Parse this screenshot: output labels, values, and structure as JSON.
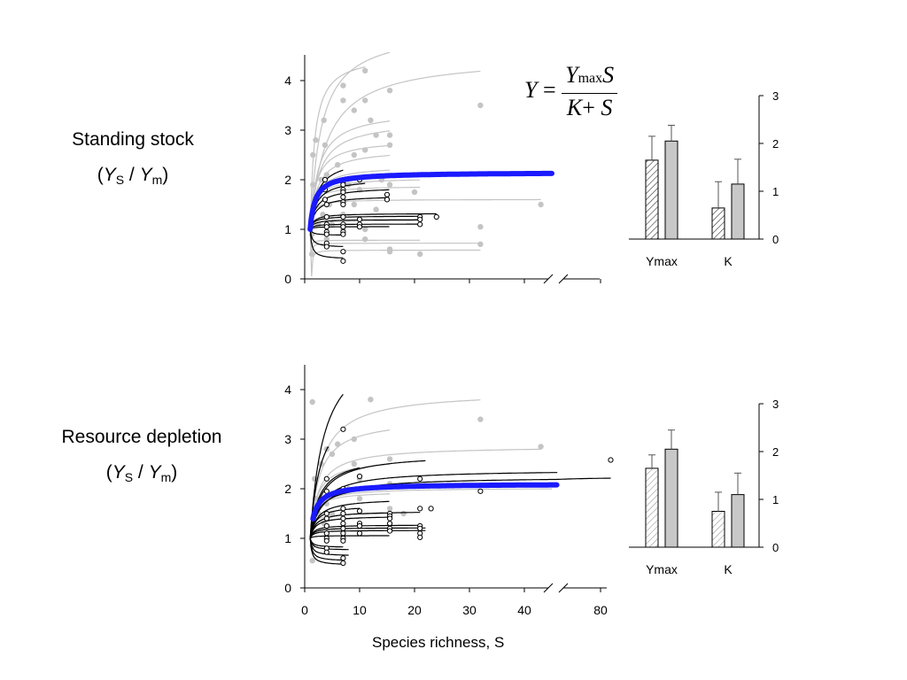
{
  "labels": {
    "top_row": "Standing stock",
    "bottom_row": "Resource depletion",
    "ratio_y": "Y",
    "ratio_sub_s": "S",
    "ratio_slash": " / ",
    "ratio_sub_m": "m",
    "x_axis": "Species richness, S",
    "equation_y": "Y",
    "equation_eq": "=",
    "equation_ymax": "Y",
    "equation_max": "max",
    "equation_s": "S",
    "equation_k": "K",
    "equation_plus": "+"
  },
  "colors": {
    "mean_curve": "#1a1aff",
    "gray_curve": "#c4c4c4",
    "gray_point": "#c4c4c4",
    "black_curve": "#000000",
    "bar_gray": "#c8c8c8"
  },
  "chart_data": [
    {
      "type": "scatter",
      "panel": "standing-stock",
      "xlabel": "",
      "ylabel": "",
      "xlim": [
        0,
        80
      ],
      "ylim": [
        0,
        4.4
      ],
      "y_ticks": [
        0,
        1,
        2,
        3,
        4
      ],
      "x_ticks": [],
      "axis_break": true,
      "mean_curve": {
        "Ymax": 2.15,
        "K": 0.9,
        "x_range": [
          1,
          45
        ]
      },
      "gray_curves": [
        {
          "a": 4.6,
          "b": 2.0,
          "xmax": 15.5
        },
        {
          "a": 4.3,
          "b": 0.8,
          "xmax": 11
        },
        {
          "a": 4.2,
          "b": 3.0,
          "xmax": 32
        },
        {
          "a": 3.2,
          "b": 1.5,
          "xmax": 15.5
        },
        {
          "a": 3.0,
          "b": 1.6,
          "xmax": 15.5
        },
        {
          "a": 2.7,
          "b": 1.1,
          "xmax": 15.5
        },
        {
          "a": 2.5,
          "b": 1.3,
          "xmax": 15.5
        },
        {
          "a": 2.2,
          "b": 1.1,
          "xmax": 15.5
        },
        {
          "a": 2.0,
          "b": 0.9,
          "xmax": 21
        },
        {
          "a": 1.85,
          "b": 0.6,
          "xmax": 21
        },
        {
          "a": 1.6,
          "b": 0.5,
          "xmax": 43
        },
        {
          "a": 1.2,
          "b": 0.15,
          "xmax": 21
        },
        {
          "a": 0.78,
          "b": -0.1,
          "xmax": 21
        },
        {
          "a": 0.72,
          "b": -0.12,
          "xmax": 32
        },
        {
          "a": 0.58,
          "b": -0.14,
          "xmax": 32
        }
      ],
      "black_curves": [
        {
          "a": 2.05,
          "b": 0.8,
          "xmax": 7
        },
        {
          "a": 1.9,
          "b": 0.7,
          "xmax": 7
        },
        {
          "a": 1.85,
          "b": 0.65,
          "xmax": 11
        },
        {
          "a": 1.75,
          "b": 0.6,
          "xmax": 15.5
        },
        {
          "a": 1.6,
          "b": 0.5,
          "xmax": 15.5
        },
        {
          "a": 1.3,
          "b": 0.2,
          "xmax": 24
        },
        {
          "a": 1.25,
          "b": 0.15,
          "xmax": 21
        },
        {
          "a": 1.18,
          "b": 0.1,
          "xmax": 21
        },
        {
          "a": 1.1,
          "b": 0.05,
          "xmax": 21
        },
        {
          "a": 1.05,
          "b": 0.03,
          "xmax": 15.5
        },
        {
          "a": 0.9,
          "b": -0.05,
          "xmax": 7
        },
        {
          "a": 0.7,
          "b": -0.12,
          "xmax": 7
        },
        {
          "a": 0.5,
          "b": -0.2,
          "xmax": 7
        }
      ],
      "gray_points": [
        [
          1.3,
          0.5
        ],
        [
          1.3,
          0.9
        ],
        [
          1.5,
          1.9
        ],
        [
          1.5,
          2.5
        ],
        [
          2,
          1.5
        ],
        [
          2,
          2.8
        ],
        [
          2.5,
          1.1
        ],
        [
          2.7,
          1.8
        ],
        [
          3,
          2.0
        ],
        [
          3.3,
          1.3
        ],
        [
          3.5,
          3.2
        ],
        [
          3.7,
          2.7
        ],
        [
          4,
          2.1
        ],
        [
          4,
          0.8
        ],
        [
          4.5,
          1.5
        ],
        [
          5,
          1.1
        ],
        [
          6,
          2.3
        ],
        [
          7,
          3.9
        ],
        [
          7,
          3.6
        ],
        [
          7,
          2.0
        ],
        [
          7,
          1.3
        ],
        [
          7,
          1.0
        ],
        [
          8,
          1.9
        ],
        [
          9,
          3.4
        ],
        [
          9,
          2.5
        ],
        [
          9,
          1.5
        ],
        [
          10,
          1.8
        ],
        [
          11,
          4.2
        ],
        [
          11,
          3.6
        ],
        [
          11,
          2.6
        ],
        [
          11,
          1.0
        ],
        [
          11,
          0.8
        ],
        [
          12,
          3.2
        ],
        [
          13,
          2.9
        ],
        [
          13,
          1.4
        ],
        [
          14,
          2.0
        ],
        [
          15.5,
          3.8
        ],
        [
          15.5,
          2.9
        ],
        [
          15.5,
          2.7
        ],
        [
          15.5,
          1.9
        ],
        [
          15.5,
          0.6
        ],
        [
          15.5,
          0.55
        ],
        [
          20,
          1.75
        ],
        [
          21,
          1.2
        ],
        [
          21,
          0.5
        ],
        [
          32,
          3.5
        ],
        [
          32,
          1.05
        ],
        [
          32,
          0.7
        ],
        [
          43,
          1.5
        ]
      ],
      "black_points": [
        [
          3.7,
          2.0
        ],
        [
          3.7,
          1.8
        ],
        [
          3.7,
          1.6
        ],
        [
          4,
          1.5
        ],
        [
          4,
          1.25
        ],
        [
          4,
          1.1
        ],
        [
          4,
          1.05
        ],
        [
          4,
          0.95
        ],
        [
          4,
          0.9
        ],
        [
          4,
          0.72
        ],
        [
          4,
          0.65
        ],
        [
          7,
          1.95
        ],
        [
          7,
          1.9
        ],
        [
          7,
          1.8
        ],
        [
          7,
          1.75
        ],
        [
          7,
          1.65
        ],
        [
          7,
          1.55
        ],
        [
          7,
          1.5
        ],
        [
          7,
          1.25
        ],
        [
          7,
          1.1
        ],
        [
          7,
          1.05
        ],
        [
          7,
          0.95
        ],
        [
          7,
          0.9
        ],
        [
          7,
          0.55
        ],
        [
          7,
          0.36
        ],
        [
          10,
          2.0
        ],
        [
          10,
          1.2
        ],
        [
          10,
          1.1
        ],
        [
          10,
          1.05
        ],
        [
          15,
          1.7
        ],
        [
          15,
          1.6
        ],
        [
          21,
          1.25
        ],
        [
          21,
          1.2
        ],
        [
          21,
          1.1
        ],
        [
          24,
          1.25
        ]
      ]
    },
    {
      "type": "bar",
      "panel": "standing-stock-params",
      "categories": [
        "Ymax",
        "K"
      ],
      "series": [
        {
          "pattern": "hatched",
          "values": [
            1.65,
            0.65
          ],
          "err": [
            0.5,
            0.55
          ]
        },
        {
          "pattern": "solid-gray",
          "values": [
            2.05,
            1.15
          ],
          "err": [
            0.33,
            0.52
          ]
        }
      ],
      "ylim": [
        0,
        3
      ],
      "y_ticks": [
        0,
        1,
        2,
        3
      ],
      "y_axis_side": "right"
    },
    {
      "type": "scatter",
      "panel": "resource-depletion",
      "xlabel": "Species richness, S",
      "ylabel": "",
      "xlim": [
        0,
        80
      ],
      "ylim": [
        0,
        4.4
      ],
      "y_ticks": [
        0,
        1,
        2,
        3,
        4
      ],
      "x_ticks": [
        "0",
        "10",
        "20",
        "30",
        "40",
        "80"
      ],
      "axis_break": true,
      "mean_curve": {
        "Ymax": 2.1,
        "K": 0.9,
        "x_range": [
          1.5,
          46
        ]
      },
      "gray_curves": [
        {
          "a": 3.8,
          "b": 2.0,
          "xmax": 32
        },
        {
          "a": 3.2,
          "b": 1.6,
          "xmax": 15.5
        },
        {
          "a": 2.8,
          "b": 1.5,
          "xmax": 43
        },
        {
          "a": 2.5,
          "b": 1.2,
          "xmax": 15.5
        },
        {
          "a": 2.0,
          "b": 1.0,
          "xmax": 45
        },
        {
          "a": 1.9,
          "b": 0.8,
          "xmax": 15.5
        },
        {
          "a": 1.5,
          "b": 0.5,
          "xmax": 15.5
        },
        {
          "a": 1.4,
          "b": 0.4,
          "xmax": 10
        },
        {
          "a": 1.2,
          "b": 0.3,
          "xmax": 8
        }
      ],
      "black_curves": [
        {
          "a": 3.6,
          "b": 2.0,
          "xmax": 7
        },
        {
          "a": 2.6,
          "b": 1.4,
          "xmax": 4.5
        },
        {
          "a": 2.3,
          "b": 1.2,
          "xmax": 10
        },
        {
          "a": 2.5,
          "b": 1.5,
          "xmax": 22
        },
        {
          "a": 2.3,
          "b": 1.5,
          "xmax": 46
        },
        {
          "a": 2.2,
          "b": 1.5,
          "xmax": 88
        },
        {
          "a": 2.0,
          "b": 1.0,
          "xmax": 21
        },
        {
          "a": 1.7,
          "b": 0.8,
          "xmax": 15.5
        },
        {
          "a": 1.55,
          "b": 0.5,
          "xmax": 10
        },
        {
          "a": 1.5,
          "b": 0.5,
          "xmax": 21
        },
        {
          "a": 1.4,
          "b": 0.4,
          "xmax": 15.5
        },
        {
          "a": 1.25,
          "b": 0.2,
          "xmax": 21
        },
        {
          "a": 1.2,
          "b": 0.15,
          "xmax": 22
        },
        {
          "a": 1.15,
          "b": 0.1,
          "xmax": 22
        },
        {
          "a": 1.05,
          "b": 0.03,
          "xmax": 15.5
        },
        {
          "a": 0.85,
          "b": -0.08,
          "xmax": 7
        },
        {
          "a": 0.8,
          "b": -0.1,
          "xmax": 8
        },
        {
          "a": 0.7,
          "b": -0.12,
          "xmax": 8
        },
        {
          "a": 0.62,
          "b": -0.15,
          "xmax": 7
        },
        {
          "a": 0.55,
          "b": -0.18,
          "xmax": 7
        }
      ],
      "gray_points": [
        [
          1.4,
          3.75
        ],
        [
          1.4,
          0.55
        ],
        [
          1.4,
          0.85
        ],
        [
          1.8,
          2.2
        ],
        [
          2,
          1.8
        ],
        [
          2.5,
          1.5
        ],
        [
          3,
          2.5
        ],
        [
          3.5,
          1.3
        ],
        [
          4,
          1.7
        ],
        [
          4,
          2.8
        ],
        [
          5,
          2.7
        ],
        [
          5,
          1.5
        ],
        [
          6,
          2.9
        ],
        [
          8,
          2.0
        ],
        [
          9,
          3.0
        ],
        [
          9,
          2.5
        ],
        [
          10,
          2.2
        ],
        [
          10,
          1.8
        ],
        [
          12,
          3.8
        ],
        [
          15.5,
          2.6
        ],
        [
          15.5,
          2.1
        ],
        [
          15.5,
          1.6
        ],
        [
          18,
          1.5
        ],
        [
          32,
          3.4
        ],
        [
          43,
          2.85
        ]
      ],
      "black_points": [
        [
          4,
          2.2
        ],
        [
          4,
          1.95
        ],
        [
          4,
          1.5
        ],
        [
          4,
          1.4
        ],
        [
          4,
          1.25
        ],
        [
          4,
          1.1
        ],
        [
          4,
          1.0
        ],
        [
          4,
          0.95
        ],
        [
          4,
          0.8
        ],
        [
          4,
          0.72
        ],
        [
          7,
          3.2
        ],
        [
          7,
          2.0
        ],
        [
          7,
          1.95
        ],
        [
          7,
          1.6
        ],
        [
          7,
          1.5
        ],
        [
          7,
          1.4
        ],
        [
          7,
          1.3
        ],
        [
          7,
          1.2
        ],
        [
          7,
          1.1
        ],
        [
          7,
          1.0
        ],
        [
          7,
          0.95
        ],
        [
          7,
          0.6
        ],
        [
          7,
          0.5
        ],
        [
          10,
          2.25
        ],
        [
          10,
          1.55
        ],
        [
          10,
          1.3
        ],
        [
          10,
          1.25
        ],
        [
          10,
          1.1
        ],
        [
          15.5,
          1.5
        ],
        [
          15.5,
          1.45
        ],
        [
          15.5,
          1.4
        ],
        [
          15.5,
          1.3
        ],
        [
          15.5,
          1.2
        ],
        [
          15.5,
          1.15
        ],
        [
          21,
          2.2
        ],
        [
          21,
          1.6
        ],
        [
          21,
          1.25
        ],
        [
          21,
          1.2
        ],
        [
          21,
          1.1
        ],
        [
          21,
          1.02
        ],
        [
          23,
          1.6
        ],
        [
          32,
          1.95
        ],
        [
          88,
          2.58
        ]
      ]
    },
    {
      "type": "bar",
      "panel": "resource-depletion-params",
      "categories": [
        "Ymax",
        "K"
      ],
      "series": [
        {
          "pattern": "hatched-light",
          "values": [
            1.65,
            0.75
          ],
          "err": [
            0.28,
            0.4
          ]
        },
        {
          "pattern": "solid-gray",
          "values": [
            2.05,
            1.1
          ],
          "err": [
            0.4,
            0.45
          ]
        }
      ],
      "ylim": [
        0,
        3
      ],
      "y_ticks": [
        0,
        1,
        2,
        3
      ],
      "y_axis_side": "right"
    }
  ]
}
